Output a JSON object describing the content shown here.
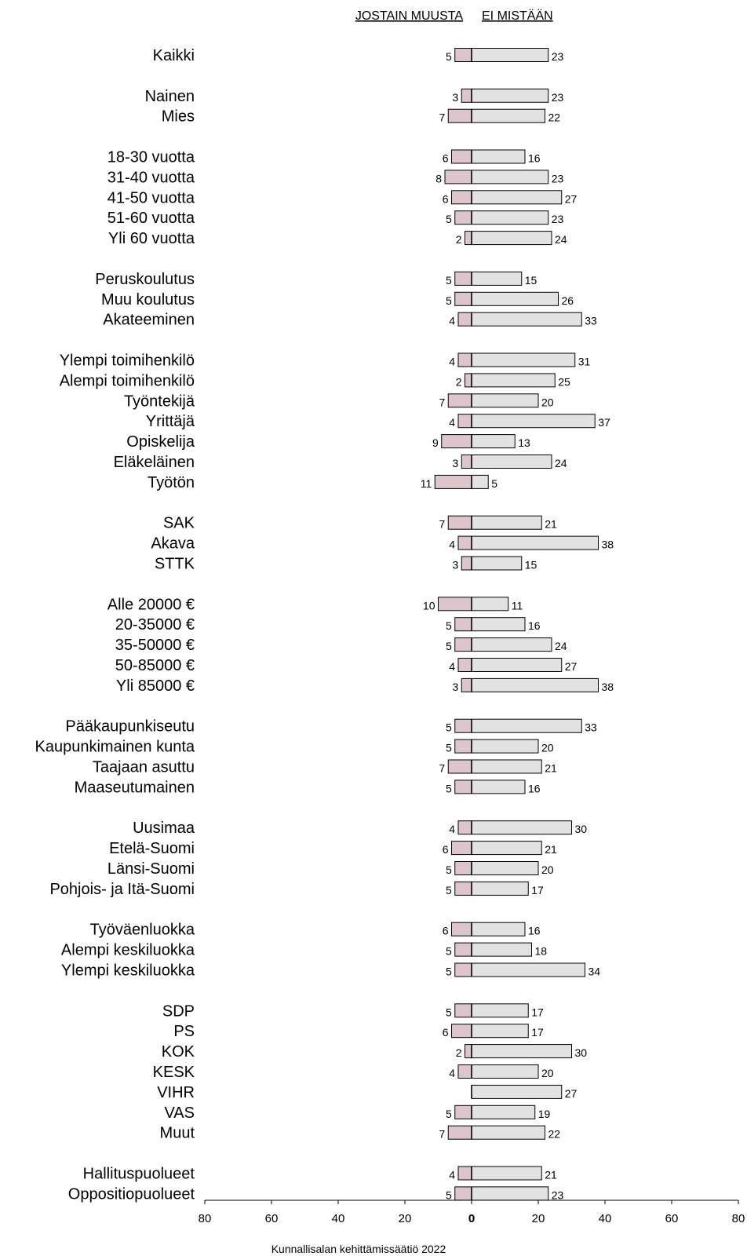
{
  "chart_data": {
    "type": "bar",
    "orientation": "horizontal-diverging",
    "left_header": "JOSTAIN MUUSTA",
    "right_header": "EI MISTÄÄN",
    "source": "Kunnallisalan kehittämissäätiö 2022",
    "xlim": [
      -80,
      80
    ],
    "x_ticks": [
      "80",
      "60",
      "40",
      "20",
      "0",
      "20",
      "40",
      "60",
      "80"
    ],
    "colors": {
      "left": "#dcc6cb",
      "right": "#e2e2e2",
      "stroke": "#000000"
    },
    "groups": [
      {
        "rows": [
          {
            "label": "Kaikki",
            "left": 5,
            "right": 23
          }
        ]
      },
      {
        "rows": [
          {
            "label": "Nainen",
            "left": 3,
            "right": 23
          },
          {
            "label": "Mies",
            "left": 7,
            "right": 22
          }
        ]
      },
      {
        "rows": [
          {
            "label": "18-30 vuotta",
            "left": 6,
            "right": 16
          },
          {
            "label": "31-40 vuotta",
            "left": 8,
            "right": 23
          },
          {
            "label": "41-50 vuotta",
            "left": 6,
            "right": 27
          },
          {
            "label": "51-60 vuotta",
            "left": 5,
            "right": 23
          },
          {
            "label": "Yli 60 vuotta",
            "left": 2,
            "right": 24
          }
        ]
      },
      {
        "rows": [
          {
            "label": "Peruskoulutus",
            "left": 5,
            "right": 15
          },
          {
            "label": "Muu koulutus",
            "left": 5,
            "right": 26
          },
          {
            "label": "Akateeminen",
            "left": 4,
            "right": 33
          }
        ]
      },
      {
        "rows": [
          {
            "label": "Ylempi toimihenkilö",
            "left": 4,
            "right": 31
          },
          {
            "label": "Alempi toimihenkilö",
            "left": 2,
            "right": 25
          },
          {
            "label": "Työntekijä",
            "left": 7,
            "right": 20
          },
          {
            "label": "Yrittäjä",
            "left": 4,
            "right": 37
          },
          {
            "label": "Opiskelija",
            "left": 9,
            "right": 13
          },
          {
            "label": "Eläkeläinen",
            "left": 3,
            "right": 24
          },
          {
            "label": "Työtön",
            "left": 11,
            "right": 5
          }
        ]
      },
      {
        "rows": [
          {
            "label": "SAK",
            "left": 7,
            "right": 21
          },
          {
            "label": "Akava",
            "left": 4,
            "right": 38
          },
          {
            "label": "STTK",
            "left": 3,
            "right": 15
          }
        ]
      },
      {
        "rows": [
          {
            "label": "Alle 20000 €",
            "left": 10,
            "right": 11
          },
          {
            "label": "20-35000 €",
            "left": 5,
            "right": 16
          },
          {
            "label": "35-50000 €",
            "left": 5,
            "right": 24
          },
          {
            "label": "50-85000 €",
            "left": 4,
            "right": 27
          },
          {
            "label": "Yli 85000 €",
            "left": 3,
            "right": 38
          }
        ]
      },
      {
        "rows": [
          {
            "label": "Pääkaupunkiseutu",
            "left": 5,
            "right": 33
          },
          {
            "label": "Kaupunkimainen kunta",
            "left": 5,
            "right": 20
          },
          {
            "label": "Taajaan asuttu",
            "left": 7,
            "right": 21
          },
          {
            "label": "Maaseutumainen",
            "left": 5,
            "right": 16
          }
        ]
      },
      {
        "rows": [
          {
            "label": "Uusimaa",
            "left": 4,
            "right": 30
          },
          {
            "label": "Etelä-Suomi",
            "left": 6,
            "right": 21
          },
          {
            "label": "Länsi-Suomi",
            "left": 5,
            "right": 20
          },
          {
            "label": "Pohjois- ja Itä-Suomi",
            "left": 5,
            "right": 17
          }
        ]
      },
      {
        "rows": [
          {
            "label": "Työväenluokka",
            "left": 6,
            "right": 16
          },
          {
            "label": "Alempi keskiluokka",
            "left": 5,
            "right": 18
          },
          {
            "label": "Ylempi keskiluokka",
            "left": 5,
            "right": 34
          }
        ]
      },
      {
        "rows": [
          {
            "label": "SDP",
            "left": 5,
            "right": 17
          },
          {
            "label": "PS",
            "left": 6,
            "right": 17
          },
          {
            "label": "KOK",
            "left": 2,
            "right": 30
          },
          {
            "label": "KESK",
            "left": 4,
            "right": 20
          },
          {
            "label": "VIHR",
            "left": null,
            "right": 27
          },
          {
            "label": "VAS",
            "left": 5,
            "right": 19
          },
          {
            "label": "Muut",
            "left": 7,
            "right": 22
          }
        ]
      },
      {
        "rows": [
          {
            "label": "Hallituspuolueet",
            "left": 4,
            "right": 21
          },
          {
            "label": "Oppositiopuolueet",
            "left": 5,
            "right": 23
          }
        ]
      }
    ]
  }
}
